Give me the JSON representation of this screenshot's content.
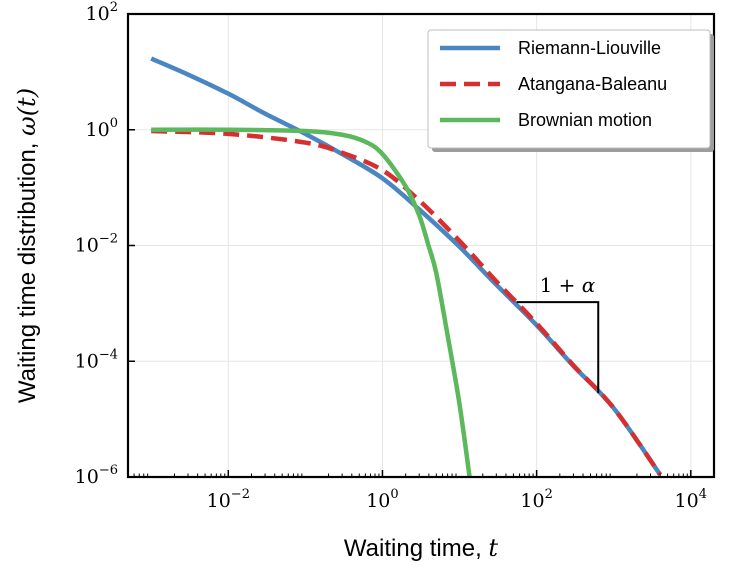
{
  "chart_data": {
    "type": "line",
    "xlabel": "Waiting time, ",
    "xlabel_var": "t",
    "ylabel": "Waiting time distribution, ",
    "ylabel_var": "ω(t)",
    "x_scale": "log",
    "y_scale": "log",
    "xlim": [
      0.0005,
      20000
    ],
    "ylim": [
      1e-06,
      100
    ],
    "grid": true,
    "legend_position": "top-right",
    "x_ticks": [
      {
        "base": "10",
        "exp": "−2",
        "value": 0.01
      },
      {
        "base": "10",
        "exp": "0",
        "value": 1
      },
      {
        "base": "10",
        "exp": "2",
        "value": 100
      },
      {
        "base": "10",
        "exp": "4",
        "value": 10000
      }
    ],
    "y_ticks": [
      {
        "base": "10",
        "exp": "−6",
        "value": 1e-06
      },
      {
        "base": "10",
        "exp": "−4",
        "value": 0.0001
      },
      {
        "base": "10",
        "exp": "−2",
        "value": 0.01
      },
      {
        "base": "10",
        "exp": "0",
        "value": 1
      },
      {
        "base": "10",
        "exp": "2",
        "value": 100
      }
    ],
    "series": [
      {
        "name": "Riemann-Liouville",
        "color": "#4a86c1",
        "dash": "solid",
        "x": [
          0.001,
          0.003,
          0.01,
          0.03,
          0.1,
          0.3,
          1,
          3,
          10,
          30,
          100,
          300,
          1000,
          4000
        ],
        "y": [
          17,
          9,
          4.2,
          1.9,
          0.85,
          0.38,
          0.145,
          0.042,
          0.0095,
          0.0021,
          0.00042,
          8.3e-05,
          1.55e-05,
          1.1e-06
        ]
      },
      {
        "name": "Atangana-Baleanu",
        "color": "#d62f2f",
        "dash": "dashed",
        "x": [
          0.001,
          0.01,
          0.1,
          0.3,
          1,
          3,
          10,
          30,
          100,
          300,
          1000,
          4000
        ],
        "y": [
          0.95,
          0.85,
          0.6,
          0.4,
          0.2,
          0.06,
          0.012,
          0.0024,
          0.00045,
          8.5e-05,
          1.55e-05,
          1.1e-06
        ]
      },
      {
        "name": "Brownian motion",
        "color": "#5cb85c",
        "dash": "solid",
        "x": [
          0.001,
          0.01,
          0.1,
          0.3,
          0.6,
          1,
          2,
          3,
          4,
          5,
          7,
          10,
          13.5
        ],
        "y": [
          1,
          1,
          0.95,
          0.82,
          0.62,
          0.38,
          0.105,
          0.033,
          0.0095,
          0.0033,
          0.00028,
          1.8e-05,
          1e-06
        ]
      }
    ],
    "annotation": {
      "text_prefix": "1 + ",
      "text_var": "α",
      "slope_x": [
        55,
        630
      ],
      "slope_top_y": 0.00105,
      "slope_bottom_y": 2.8e-05
    }
  }
}
